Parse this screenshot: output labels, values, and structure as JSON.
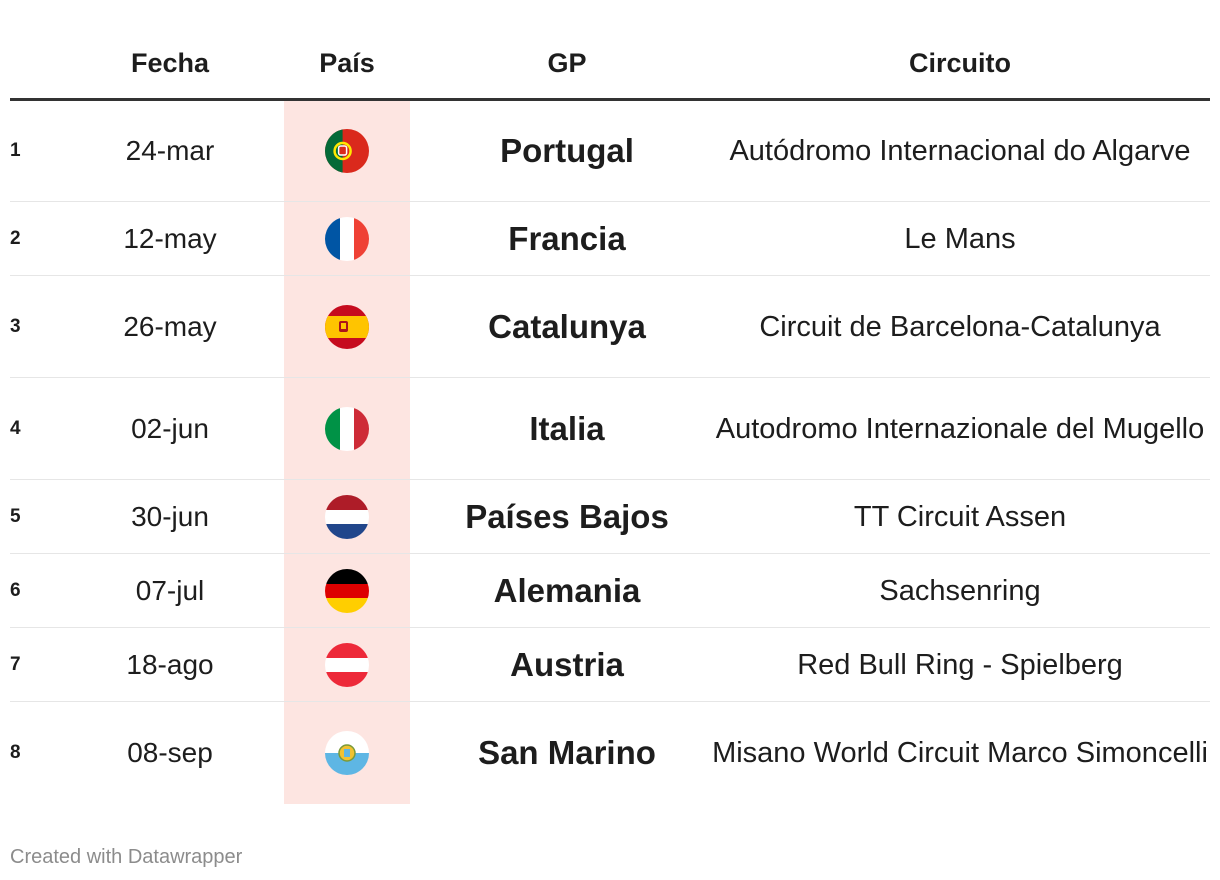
{
  "table": {
    "headers": {
      "num": "",
      "date": "Fecha",
      "country": "País",
      "gp": "GP",
      "circuit": "Circuito"
    },
    "rows": [
      {
        "num": "1",
        "date": "24-mar",
        "flag": "portugal-flag-icon",
        "gp": "Portugal",
        "circuit": "Autódromo Internacional do Algarve"
      },
      {
        "num": "2",
        "date": "12-may",
        "flag": "france-flag-icon",
        "gp": "Francia",
        "circuit": "Le Mans"
      },
      {
        "num": "3",
        "date": "26-may",
        "flag": "spain-flag-icon",
        "gp": "Catalunya",
        "circuit": "Circuit de Barcelona-Catalunya"
      },
      {
        "num": "4",
        "date": "02-jun",
        "flag": "italy-flag-icon",
        "gp": "Italia",
        "circuit": "Autodromo Internazionale del Mugello"
      },
      {
        "num": "5",
        "date": "30-jun",
        "flag": "netherlands-flag-icon",
        "gp": "Países Bajos",
        "circuit": "TT Circuit Assen"
      },
      {
        "num": "6",
        "date": "07-jul",
        "flag": "germany-flag-icon",
        "gp": "Alemania",
        "circuit": "Sachsenring"
      },
      {
        "num": "7",
        "date": "18-ago",
        "flag": "austria-flag-icon",
        "gp": "Austria",
        "circuit": "Red Bull Ring - Spielberg"
      },
      {
        "num": "8",
        "date": "08-sep",
        "flag": "san-marino-flag-icon",
        "gp": "San Marino",
        "circuit": "Misano World Circuit Marco Simoncelli"
      }
    ]
  },
  "colors": {
    "country_column_highlight": "#fde5e1",
    "header_rule": "#333333",
    "footer_text": "#8c8c8c"
  },
  "footer": {
    "credit": "Created with Datawrapper"
  }
}
